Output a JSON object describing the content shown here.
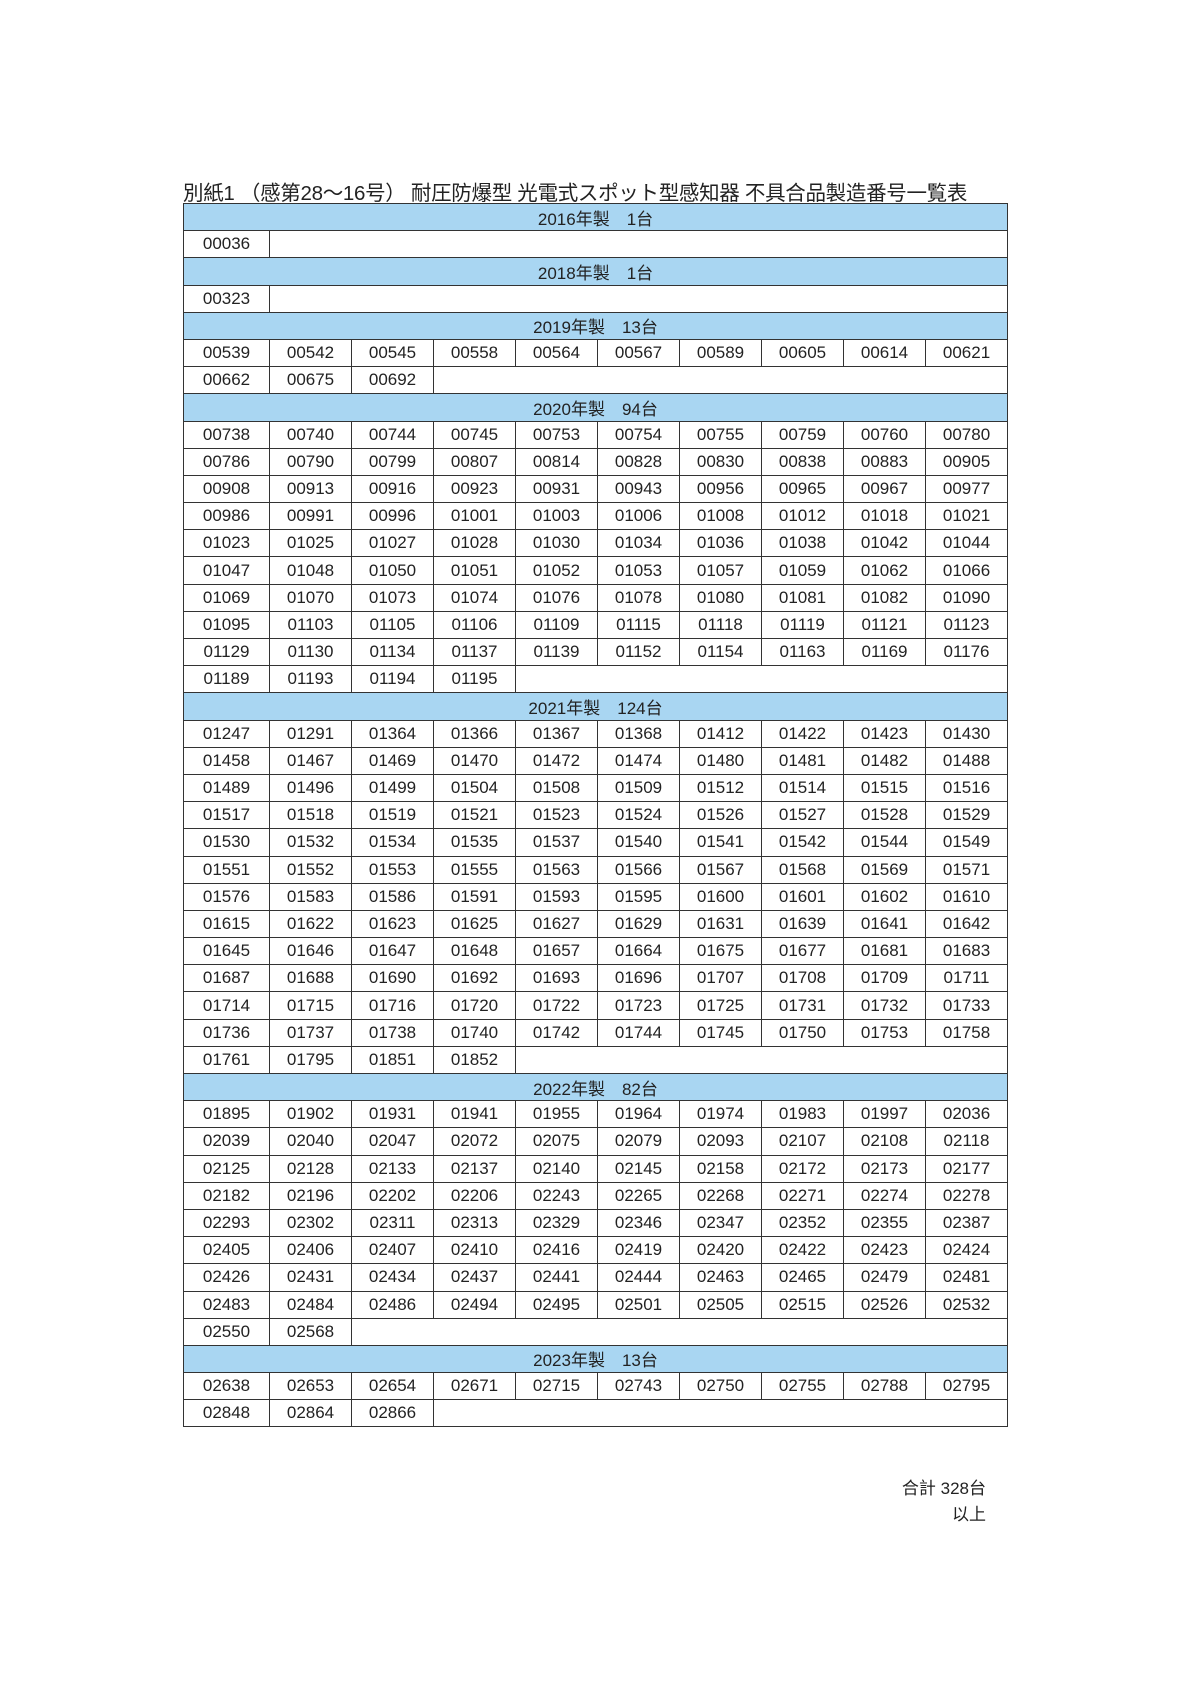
{
  "title": "別紙1 （感第28～16号） 耐圧防爆型 光電式スポット型感知器 不具合品製造番号一覧表",
  "colors": {
    "section_header_bg": "#a9d6f2",
    "border": "#333333"
  },
  "sections": [
    {
      "label": "2016年製　1台",
      "serials": [
        "00036"
      ]
    },
    {
      "label": "2018年製　1台",
      "serials": [
        "00323"
      ]
    },
    {
      "label": "2019年製　13台",
      "serials": [
        "00539",
        "00542",
        "00545",
        "00558",
        "00564",
        "00567",
        "00589",
        "00605",
        "00614",
        "00621",
        "00662",
        "00675",
        "00692"
      ]
    },
    {
      "label": "2020年製　94台",
      "serials": [
        "00738",
        "00740",
        "00744",
        "00745",
        "00753",
        "00754",
        "00755",
        "00759",
        "00760",
        "00780",
        "00786",
        "00790",
        "00799",
        "00807",
        "00814",
        "00828",
        "00830",
        "00838",
        "00883",
        "00905",
        "00908",
        "00913",
        "00916",
        "00923",
        "00931",
        "00943",
        "00956",
        "00965",
        "00967",
        "00977",
        "00986",
        "00991",
        "00996",
        "01001",
        "01003",
        "01006",
        "01008",
        "01012",
        "01018",
        "01021",
        "01023",
        "01025",
        "01027",
        "01028",
        "01030",
        "01034",
        "01036",
        "01038",
        "01042",
        "01044",
        "01047",
        "01048",
        "01050",
        "01051",
        "01052",
        "01053",
        "01057",
        "01059",
        "01062",
        "01066",
        "01069",
        "01070",
        "01073",
        "01074",
        "01076",
        "01078",
        "01080",
        "01081",
        "01082",
        "01090",
        "01095",
        "01103",
        "01105",
        "01106",
        "01109",
        "01115",
        "01118",
        "01119",
        "01121",
        "01123",
        "01129",
        "01130",
        "01134",
        "01137",
        "01139",
        "01152",
        "01154",
        "01163",
        "01169",
        "01176",
        "01189",
        "01193",
        "01194",
        "01195"
      ]
    },
    {
      "label": "2021年製　124台",
      "serials": [
        "01247",
        "01291",
        "01364",
        "01366",
        "01367",
        "01368",
        "01412",
        "01422",
        "01423",
        "01430",
        "01458",
        "01467",
        "01469",
        "01470",
        "01472",
        "01474",
        "01480",
        "01481",
        "01482",
        "01488",
        "01489",
        "01496",
        "01499",
        "01504",
        "01508",
        "01509",
        "01512",
        "01514",
        "01515",
        "01516",
        "01517",
        "01518",
        "01519",
        "01521",
        "01523",
        "01524",
        "01526",
        "01527",
        "01528",
        "01529",
        "01530",
        "01532",
        "01534",
        "01535",
        "01537",
        "01540",
        "01541",
        "01542",
        "01544",
        "01549",
        "01551",
        "01552",
        "01553",
        "01555",
        "01563",
        "01566",
        "01567",
        "01568",
        "01569",
        "01571",
        "01576",
        "01583",
        "01586",
        "01591",
        "01593",
        "01595",
        "01600",
        "01601",
        "01602",
        "01610",
        "01615",
        "01622",
        "01623",
        "01625",
        "01627",
        "01629",
        "01631",
        "01639",
        "01641",
        "01642",
        "01645",
        "01646",
        "01647",
        "01648",
        "01657",
        "01664",
        "01675",
        "01677",
        "01681",
        "01683",
        "01687",
        "01688",
        "01690",
        "01692",
        "01693",
        "01696",
        "01707",
        "01708",
        "01709",
        "01711",
        "01714",
        "01715",
        "01716",
        "01720",
        "01722",
        "01723",
        "01725",
        "01731",
        "01732",
        "01733",
        "01736",
        "01737",
        "01738",
        "01740",
        "01742",
        "01744",
        "01745",
        "01750",
        "01753",
        "01758",
        "01761",
        "01795",
        "01851",
        "01852"
      ]
    },
    {
      "label": "2022年製　82台",
      "serials": [
        "01895",
        "01902",
        "01931",
        "01941",
        "01955",
        "01964",
        "01974",
        "01983",
        "01997",
        "02036",
        "02039",
        "02040",
        "02047",
        "02072",
        "02075",
        "02079",
        "02093",
        "02107",
        "02108",
        "02118",
        "02125",
        "02128",
        "02133",
        "02137",
        "02140",
        "02145",
        "02158",
        "02172",
        "02173",
        "02177",
        "02182",
        "02196",
        "02202",
        "02206",
        "02243",
        "02265",
        "02268",
        "02271",
        "02274",
        "02278",
        "02293",
        "02302",
        "02311",
        "02313",
        "02329",
        "02346",
        "02347",
        "02352",
        "02355",
        "02387",
        "02405",
        "02406",
        "02407",
        "02410",
        "02416",
        "02419",
        "02420",
        "02422",
        "02423",
        "02424",
        "02426",
        "02431",
        "02434",
        "02437",
        "02441",
        "02444",
        "02463",
        "02465",
        "02479",
        "02481",
        "02483",
        "02484",
        "02486",
        "02494",
        "02495",
        "02501",
        "02505",
        "02515",
        "02526",
        "02532",
        "02550",
        "02568"
      ]
    },
    {
      "label": "2023年製　13台",
      "serials": [
        "02638",
        "02653",
        "02654",
        "02671",
        "02715",
        "02743",
        "02750",
        "02755",
        "02788",
        "02795",
        "02848",
        "02864",
        "02866"
      ]
    }
  ],
  "footer": {
    "total": "合計 328台",
    "end": "以上"
  }
}
